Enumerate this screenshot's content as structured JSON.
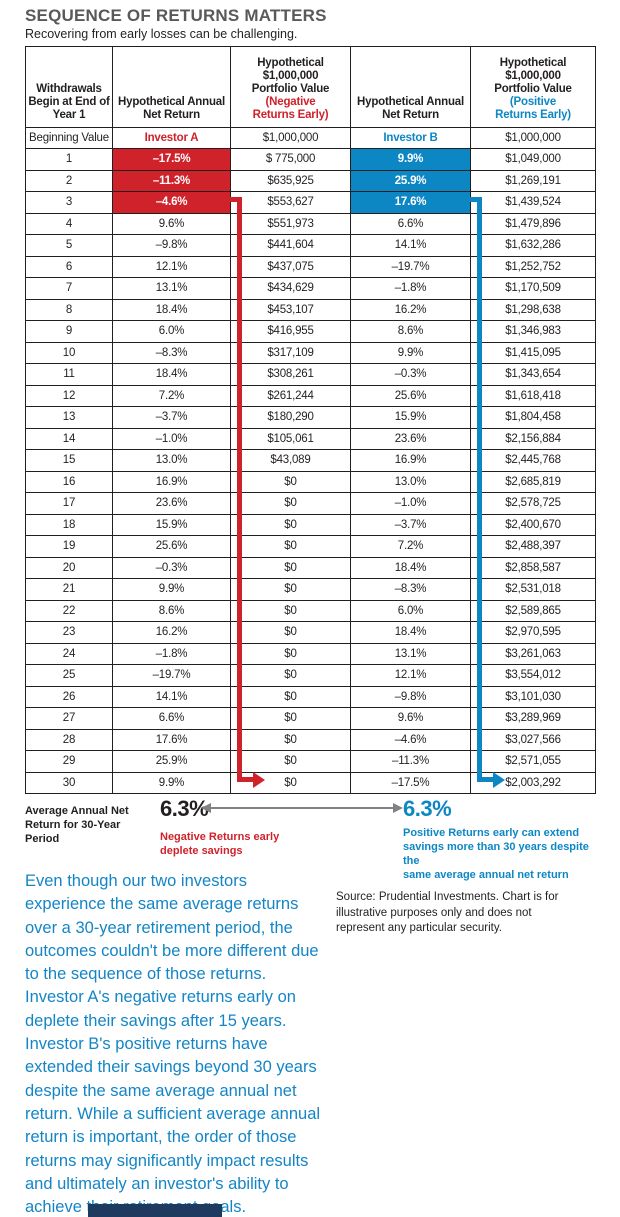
{
  "header": {
    "title": "SEQUENCE OF RETURNS MATTERS",
    "subtitle": "Recovering from early losses can be challenging."
  },
  "colors": {
    "red": "#d0222b",
    "blue": "#0d87c4",
    "title_gray": "#58595b",
    "text_black": "#231f20",
    "arrow_gray": "#808285",
    "commentary_blue": "#1385c6",
    "footer_navy": "#1e3a5f"
  },
  "table": {
    "columns": [
      {
        "lines": [
          "Withdrawals",
          "Begin at End of",
          "Year 1"
        ]
      },
      {
        "lines": [
          "Hypothetical Annual",
          "Net Return"
        ]
      },
      {
        "lines": [
          "Hypothetical",
          "$1,000,000",
          "Portfolio Value"
        ],
        "accent_lines": [
          "(Negative",
          "Returns Early)"
        ],
        "accent": "red"
      },
      {
        "lines": [
          "Hypothetical Annual",
          "Net Return"
        ]
      },
      {
        "lines": [
          "Hypothetical",
          "$1,000,000",
          "Portfolio Value"
        ],
        "accent_lines": [
          "(Positive",
          "Returns Early)"
        ],
        "accent": "blue"
      }
    ],
    "beginning_row": {
      "label": "Beginning Value",
      "investor_a": "Investor A",
      "a_value": "$1,000,000",
      "investor_b": "Investor B",
      "b_value": "$1,000,000"
    },
    "highlight_years_a": [
      1,
      2,
      3
    ],
    "highlight_years_b": [
      1,
      2,
      3
    ],
    "rows": [
      [
        "1",
        "–17.5%",
        "$ 775,000",
        "9.9%",
        "$1,049,000"
      ],
      [
        "2",
        "–11.3%",
        "$635,925",
        "25.9%",
        "$1,269,191"
      ],
      [
        "3",
        "–4.6%",
        "$553,627",
        "17.6%",
        "$1,439,524"
      ],
      [
        "4",
        "9.6%",
        "$551,973",
        "6.6%",
        "$1,479,896"
      ],
      [
        "5",
        "–9.8%",
        "$441,604",
        "14.1%",
        "$1,632,286"
      ],
      [
        "6",
        "12.1%",
        "$437,075",
        "–19.7%",
        "$1,252,752"
      ],
      [
        "7",
        "13.1%",
        "$434,629",
        "–1.8%",
        "$1,170,509"
      ],
      [
        "8",
        "18.4%",
        "$453,107",
        "16.2%",
        "$1,298,638"
      ],
      [
        "9",
        "6.0%",
        "$416,955",
        "8.6%",
        "$1,346,983"
      ],
      [
        "10",
        "–8.3%",
        "$317,109",
        "9.9%",
        "$1,415,095"
      ],
      [
        "11",
        "18.4%",
        "$308,261",
        "–0.3%",
        "$1,343,654"
      ],
      [
        "12",
        "7.2%",
        "$261,244",
        "25.6%",
        "$1,618,418"
      ],
      [
        "13",
        "–3.7%",
        "$180,290",
        "15.9%",
        "$1,804,458"
      ],
      [
        "14",
        "–1.0%",
        "$105,061",
        "23.6%",
        "$2,156,884"
      ],
      [
        "15",
        "13.0%",
        "$43,089",
        "16.9%",
        "$2,445,768"
      ],
      [
        "16",
        "16.9%",
        "$0",
        "13.0%",
        "$2,685,819"
      ],
      [
        "17",
        "23.6%",
        "$0",
        "–1.0%",
        "$2,578,725"
      ],
      [
        "18",
        "15.9%",
        "$0",
        "–3.7%",
        "$2,400,670"
      ],
      [
        "19",
        "25.6%",
        "$0",
        "7.2%",
        "$2,488,397"
      ],
      [
        "20",
        "–0.3%",
        "$0",
        "18.4%",
        "$2,858,587"
      ],
      [
        "21",
        "9.9%",
        "$0",
        "–8.3%",
        "$2,531,018"
      ],
      [
        "22",
        "8.6%",
        "$0",
        "6.0%",
        "$2,589,865"
      ],
      [
        "23",
        "16.2%",
        "$0",
        "18.4%",
        "$2,970,595"
      ],
      [
        "24",
        "–1.8%",
        "$0",
        "13.1%",
        "$3,261,063"
      ],
      [
        "25",
        "–19.7%",
        "$0",
        "12.1%",
        "$3,554,012"
      ],
      [
        "26",
        "14.1%",
        "$0",
        "–9.8%",
        "$3,101,030"
      ],
      [
        "27",
        "6.6%",
        "$0",
        "9.6%",
        "$3,289,969"
      ],
      [
        "28",
        "17.6%",
        "$0",
        "–4.6%",
        "$3,027,566"
      ],
      [
        "29",
        "25.9%",
        "$0",
        "–11.3%",
        "$2,571,055"
      ],
      [
        "30",
        "9.9%",
        "$0",
        "–17.5%",
        "$2,003,292"
      ]
    ]
  },
  "summary": {
    "label": "Average Annual Net\nReturn for 30-Year Period",
    "a_avg": "6.3%",
    "b_avg": "6.3%",
    "a_caption": "Negative Returns early\ndeplete savings",
    "b_caption": "Positive Returns early can extend\nsavings more than 30 years despite the\nsame average annual net return"
  },
  "commentary": "Even though our two investors experience the same average returns over a 30-year retirement period, the outcomes couldn't be more different due to the sequence of those returns. Investor A's negative returns early on deplete their savings after 15 years. Investor B's positive returns have extended their savings beyond 30 years despite the same average annual net return. While a sufficient average annual return is important, the order of those returns may significantly impact results and ultimately an investor's ability to achieve their retirement goals.",
  "source": "Source: Prudential Investments. Chart is for illustrative purposes only and does not represent any particular security.",
  "chart_data": {
    "type": "table",
    "title": "SEQUENCE OF RETURNS MATTERS",
    "subtitle": "Recovering from early losses can be challenging.",
    "columns": [
      "Withdrawals Begin at End of Year 1",
      "Hypothetical Annual Net Return (Investor A)",
      "Hypothetical $1,000,000 Portfolio Value (Negative Returns Early)",
      "Hypothetical Annual Net Return (Investor B)",
      "Hypothetical $1,000,000 Portfolio Value (Positive Returns Early)"
    ],
    "beginning_value": 1000000,
    "years": [
      1,
      2,
      3,
      4,
      5,
      6,
      7,
      8,
      9,
      10,
      11,
      12,
      13,
      14,
      15,
      16,
      17,
      18,
      19,
      20,
      21,
      22,
      23,
      24,
      25,
      26,
      27,
      28,
      29,
      30
    ],
    "investor_a_returns_pct": [
      -17.5,
      -11.3,
      -4.6,
      9.6,
      -9.8,
      12.1,
      13.1,
      18.4,
      6.0,
      -8.3,
      18.4,
      7.2,
      -3.7,
      -1.0,
      13.0,
      16.9,
      23.6,
      15.9,
      25.6,
      -0.3,
      9.9,
      8.6,
      16.2,
      -1.8,
      -19.7,
      14.1,
      6.6,
      17.6,
      25.9,
      9.9
    ],
    "investor_a_portfolio_values": [
      775000,
      635925,
      553627,
      551973,
      441604,
      437075,
      434629,
      453107,
      416955,
      317109,
      308261,
      261244,
      180290,
      105061,
      43089,
      0,
      0,
      0,
      0,
      0,
      0,
      0,
      0,
      0,
      0,
      0,
      0,
      0,
      0,
      0
    ],
    "investor_b_returns_pct": [
      9.9,
      25.9,
      17.6,
      6.6,
      14.1,
      -19.7,
      -1.8,
      16.2,
      8.6,
      9.9,
      -0.3,
      25.6,
      15.9,
      23.6,
      16.9,
      13.0,
      -1.0,
      -3.7,
      7.2,
      18.4,
      -8.3,
      6.0,
      18.4,
      13.1,
      12.1,
      -9.8,
      9.6,
      -4.6,
      -11.3,
      -17.5
    ],
    "investor_b_portfolio_values": [
      1049000,
      1269191,
      1439524,
      1479896,
      1632286,
      1252752,
      1170509,
      1298638,
      1346983,
      1415095,
      1343654,
      1618418,
      1804458,
      2156884,
      2445768,
      2685819,
      2578725,
      2400670,
      2488397,
      2858587,
      2531018,
      2589865,
      2970595,
      3261063,
      3554012,
      3101030,
      3289969,
      3027566,
      2571055,
      2003292
    ],
    "average_annual_net_return_30yr_pct": 6.3
  }
}
